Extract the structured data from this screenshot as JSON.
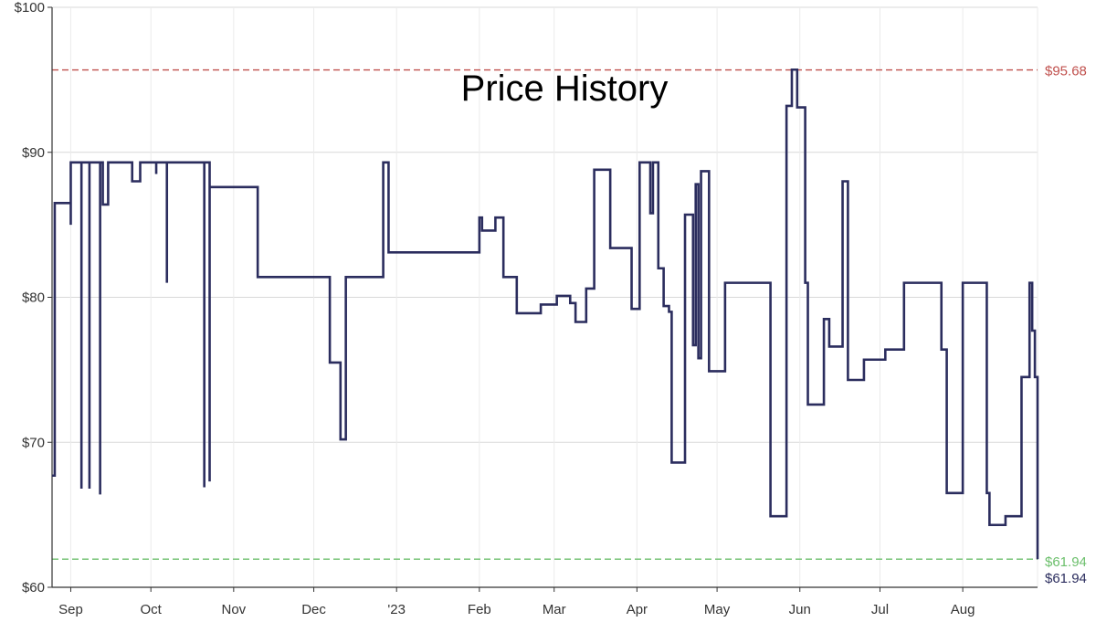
{
  "chart_data": {
    "type": "line",
    "title": "Price History",
    "x_tick_labels": [
      "Sep",
      "Oct",
      "Nov",
      "Dec",
      "'23",
      "Feb",
      "Mar",
      "Apr",
      "May",
      "Jun",
      "Jul",
      "Aug"
    ],
    "y_tick_labels": [
      "$100",
      "$90",
      "$80",
      "$70",
      "$60"
    ],
    "y_ticks": [
      100,
      90,
      80,
      70,
      60
    ],
    "ylim": [
      60,
      100
    ],
    "xlim": [
      "2022-08-25",
      "2023-08-29"
    ],
    "grid": true,
    "line_color": "#2b2d5e",
    "reference_lines": [
      {
        "label": "$95.68",
        "value": 95.68,
        "color": "#c0504d"
      },
      {
        "label": "$61.94",
        "value": 61.94,
        "color": "#6cbf6c"
      }
    ],
    "current_label": "$61.94",
    "current_color": "#2b2d5e",
    "series": [
      {
        "points": [
          [
            "2022-08-25",
            67.7
          ],
          [
            "2022-08-26",
            86.5
          ],
          [
            "2022-09-01",
            85.0
          ],
          [
            "2022-09-01",
            89.3
          ],
          [
            "2022-09-05",
            66.8
          ],
          [
            "2022-09-05",
            89.3
          ],
          [
            "2022-09-08",
            66.8
          ],
          [
            "2022-09-08",
            89.3
          ],
          [
            "2022-09-12",
            66.4
          ],
          [
            "2022-09-12",
            89.3
          ],
          [
            "2022-09-13",
            86.4
          ],
          [
            "2022-09-15",
            89.3
          ],
          [
            "2022-09-24",
            88.0
          ],
          [
            "2022-09-27",
            89.3
          ],
          [
            "2022-10-03",
            88.5
          ],
          [
            "2022-10-03",
            89.3
          ],
          [
            "2022-10-07",
            81.0
          ],
          [
            "2022-10-07",
            89.3
          ],
          [
            "2022-10-21",
            66.9
          ],
          [
            "2022-10-21",
            89.3
          ],
          [
            "2022-10-23",
            67.3
          ],
          [
            "2022-10-23",
            87.6
          ],
          [
            "2022-11-10",
            81.4
          ],
          [
            "2022-12-07",
            75.5
          ],
          [
            "2022-12-11",
            70.2
          ],
          [
            "2022-12-13",
            81.4
          ],
          [
            "2022-12-27",
            89.3
          ],
          [
            "2022-12-29",
            83.1
          ],
          [
            "2023-02-01",
            85.5
          ],
          [
            "2023-02-02",
            84.6
          ],
          [
            "2023-02-07",
            85.5
          ],
          [
            "2023-02-10",
            81.4
          ],
          [
            "2023-02-15",
            78.9
          ],
          [
            "2023-02-24",
            79.5
          ],
          [
            "2023-03-02",
            80.1
          ],
          [
            "2023-03-07",
            79.6
          ],
          [
            "2023-03-09",
            78.3
          ],
          [
            "2023-03-13",
            80.6
          ],
          [
            "2023-03-16",
            88.8
          ],
          [
            "2023-03-22",
            83.4
          ],
          [
            "2023-03-30",
            79.2
          ],
          [
            "2023-04-02",
            89.3
          ],
          [
            "2023-04-06",
            85.8
          ],
          [
            "2023-04-07",
            89.3
          ],
          [
            "2023-04-09",
            82.0
          ],
          [
            "2023-04-11",
            79.4
          ],
          [
            "2023-04-13",
            79.0
          ],
          [
            "2023-04-14",
            68.6
          ],
          [
            "2023-04-19",
            85.7
          ],
          [
            "2023-04-22",
            76.7
          ],
          [
            "2023-04-23",
            87.8
          ],
          [
            "2023-04-24",
            75.8
          ],
          [
            "2023-04-25",
            88.7
          ],
          [
            "2023-04-28",
            74.9
          ],
          [
            "2023-05-04",
            81.0
          ],
          [
            "2023-05-21",
            64.9
          ],
          [
            "2023-05-27",
            93.2
          ],
          [
            "2023-05-29",
            95.7
          ],
          [
            "2023-05-31",
            93.1
          ],
          [
            "2023-06-03",
            81.0
          ],
          [
            "2023-06-04",
            72.6
          ],
          [
            "2023-06-10",
            78.5
          ],
          [
            "2023-06-12",
            76.6
          ],
          [
            "2023-06-17",
            88.0
          ],
          [
            "2023-06-19",
            74.3
          ],
          [
            "2023-06-25",
            75.7
          ],
          [
            "2023-07-03",
            76.4
          ],
          [
            "2023-07-10",
            81.0
          ],
          [
            "2023-07-24",
            76.4
          ],
          [
            "2023-07-26",
            66.5
          ],
          [
            "2023-08-01",
            81.0
          ],
          [
            "2023-08-10",
            66.5
          ],
          [
            "2023-08-11",
            64.3
          ],
          [
            "2023-08-17",
            64.9
          ],
          [
            "2023-08-23",
            74.5
          ],
          [
            "2023-08-26",
            81.0
          ],
          [
            "2023-08-27",
            77.7
          ],
          [
            "2023-08-28",
            74.5
          ],
          [
            "2023-08-29",
            61.94
          ]
        ]
      }
    ]
  }
}
